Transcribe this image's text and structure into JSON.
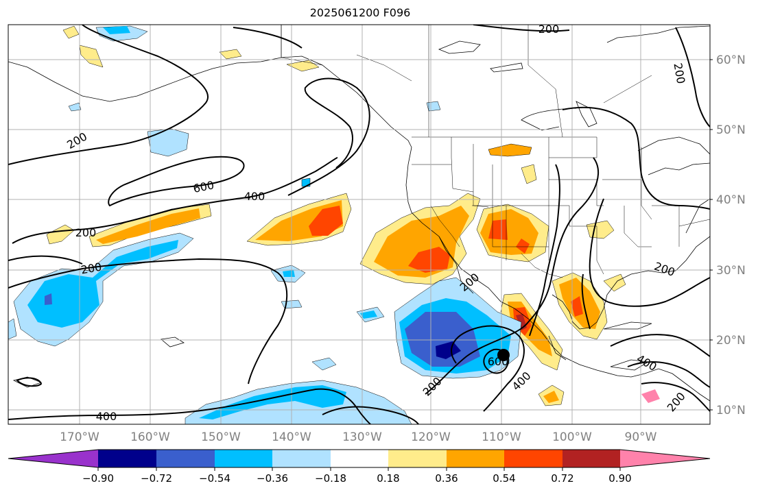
{
  "title": "2025061200 F096",
  "map": {
    "lon_labels": [
      "170°W",
      "160°W",
      "150°W",
      "140°W",
      "130°W",
      "120°W",
      "110°W",
      "100°W",
      "90°W"
    ],
    "lat_labels": [
      "60°N",
      "50°N",
      "40°N",
      "30°N",
      "20°N",
      "10°N"
    ],
    "contour_labels": [
      "200",
      "200",
      "600",
      "400",
      "200",
      "200",
      "400",
      "200",
      "200",
      "600",
      "400",
      "200",
      "400",
      "200",
      "200"
    ],
    "grid": true,
    "colors": {
      "label_gray": "#808080",
      "grid": "#b0b0b0",
      "contour": "#000000"
    }
  },
  "colorbar": {
    "ticks": [
      "−0.90",
      "−0.72",
      "−0.54",
      "−0.36",
      "−0.18",
      "0.18",
      "0.36",
      "0.54",
      "0.72",
      "0.90"
    ],
    "colors": [
      "#9932cc",
      "#00008b",
      "#3a5fcd",
      "#00bfff",
      "#b0e2ff",
      "#ffffff",
      "#ffec8b",
      "#ffa500",
      "#ff4500",
      "#b22222",
      "#ff82ab"
    ]
  }
}
